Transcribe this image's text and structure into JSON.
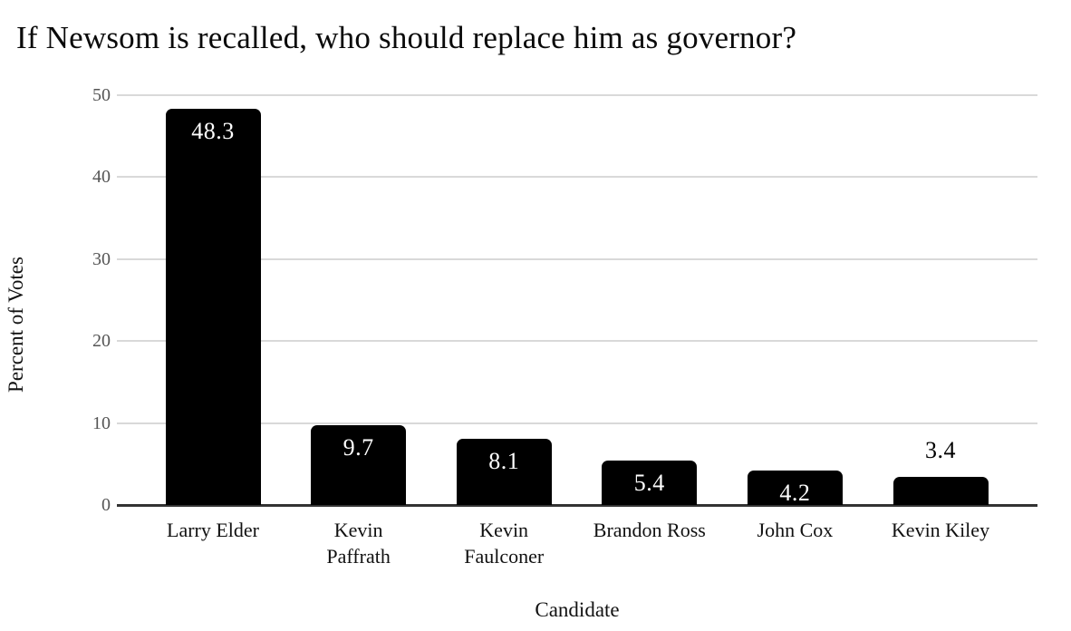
{
  "chart_data": {
    "type": "bar",
    "title": "If Newsom is recalled, who should replace him as governor?",
    "xlabel": "Candidate",
    "ylabel": "Percent of Votes",
    "ylim": [
      0,
      50
    ],
    "yticks": [
      0,
      10,
      20,
      30,
      40,
      50
    ],
    "grid": true,
    "legend": "none",
    "categories": [
      "Larry Elder",
      "Kevin Paffrath",
      "Kevin Faulconer",
      "Brandon Ross",
      "John Cox",
      "Kevin Kiley"
    ],
    "category_display": [
      "Larry Elder",
      "Kevin\nPaffrath",
      "Kevin\nFaulconer",
      "Brandon Ross",
      "John Cox",
      "Kevin Kiley"
    ],
    "values": [
      48.3,
      9.7,
      8.1,
      5.4,
      4.2,
      3.4
    ],
    "value_labels": [
      "48.3",
      "9.7",
      "8.1",
      "5.4",
      "4.2",
      "3.4"
    ],
    "value_label_placement": [
      "inside",
      "inside",
      "inside",
      "inside",
      "inside",
      "above"
    ],
    "colors": {
      "bar": "#000000",
      "value_label_inside": "#ffffff",
      "value_label_outside": "#000000",
      "gridline": "#d9d9d9",
      "axis_line": "#333333",
      "tick_label": "#555555",
      "text": "#0a0a0a",
      "background": "#ffffff"
    }
  }
}
